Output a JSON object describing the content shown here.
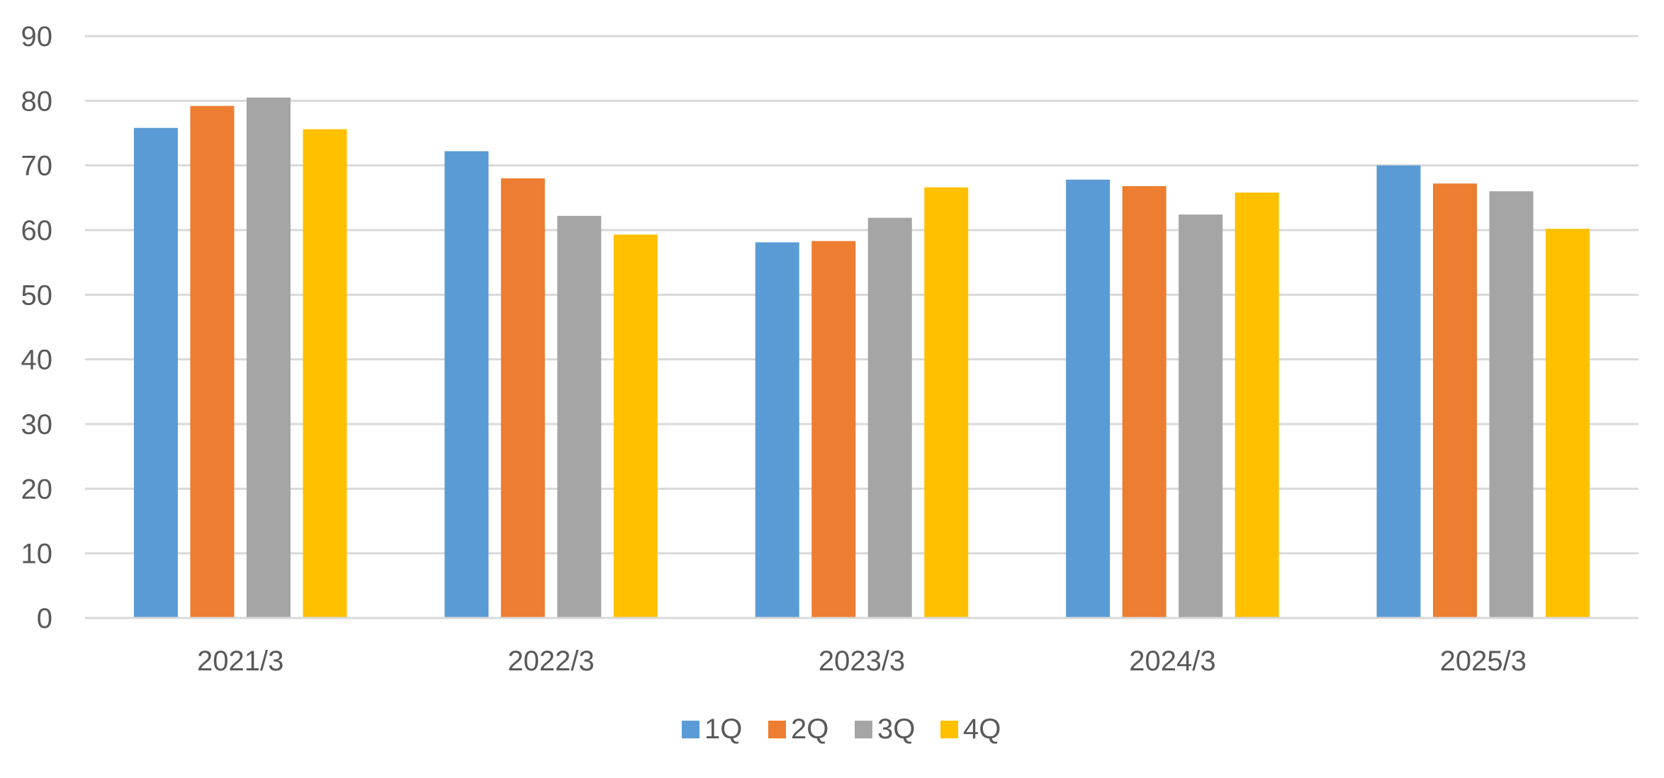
{
  "chart_data": {
    "type": "bar",
    "categories": [
      "2021/3",
      "2022/3",
      "2023/3",
      "2024/3",
      "2025/3"
    ],
    "series": [
      {
        "name": "1Q",
        "color": "#5B9BD5",
        "values": [
          75.8,
          72.2,
          58.1,
          67.8,
          70.0
        ]
      },
      {
        "name": "2Q",
        "color": "#ED7D31",
        "values": [
          79.2,
          68.0,
          58.3,
          66.8,
          67.2
        ]
      },
      {
        "name": "3Q",
        "color": "#A5A5A5",
        "values": [
          80.5,
          62.2,
          61.9,
          62.4,
          66.0
        ]
      },
      {
        "name": "4Q",
        "color": "#FFC000",
        "values": [
          75.6,
          59.3,
          66.6,
          65.8,
          60.2
        ]
      }
    ],
    "ylim": [
      0,
      90
    ],
    "yticks": [
      0,
      10,
      20,
      30,
      40,
      50,
      60,
      70,
      80,
      90
    ],
    "grid": true,
    "legend_position": "bottom"
  }
}
